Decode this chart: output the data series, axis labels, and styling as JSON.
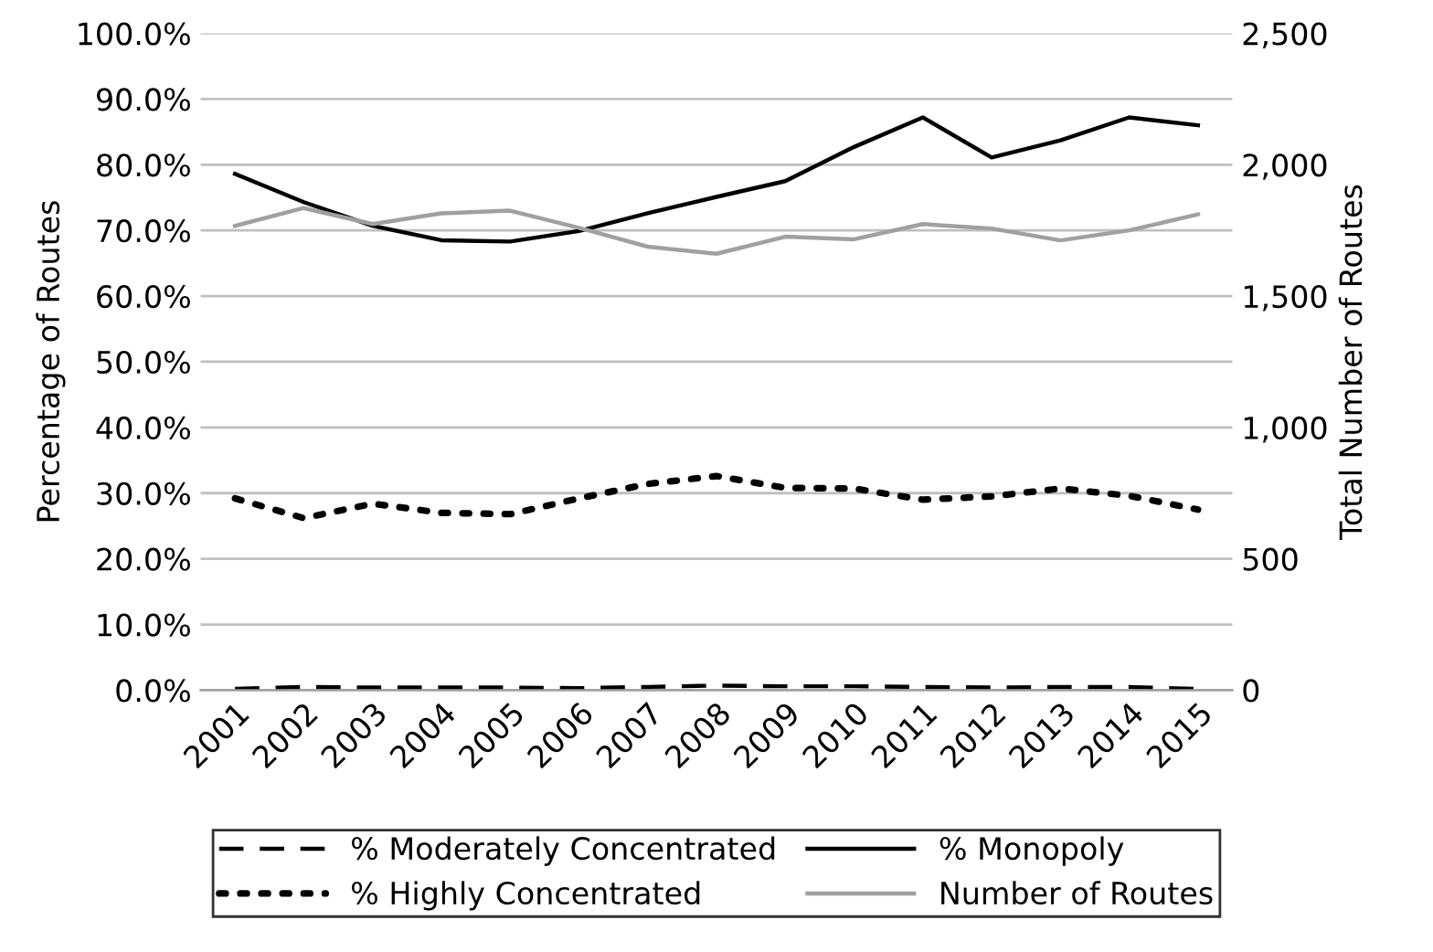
{
  "chart_data": {
    "type": "line",
    "ylabel": "Percentage of Routes",
    "y2label": "Total Number of Routes",
    "categories": [
      "2001",
      "2002",
      "2003",
      "2004",
      "2005",
      "2006",
      "2007",
      "2008",
      "2009",
      "2010",
      "2011",
      "2012",
      "2013",
      "2014",
      "2015"
    ],
    "series": [
      {
        "name": "% Moderately Concentrated",
        "color": "#000000",
        "line_style": "dashed",
        "values": [
          0.2,
          0.5,
          0.4,
          0.4,
          0.4,
          0.3,
          0.5,
          0.7,
          0.6,
          0.6,
          0.5,
          0.4,
          0.5,
          0.5,
          0.2
        ]
      },
      {
        "name": "% Highly Concentrated",
        "color": "#000000",
        "line_style": "dotted",
        "values": [
          29.2,
          26.2,
          28.4,
          27.0,
          26.8,
          29.2,
          31.4,
          32.6,
          30.8,
          30.7,
          29.0,
          29.5,
          30.7,
          29.6,
          27.5
        ]
      },
      {
        "name": "% Monopoly",
        "color": "#000000",
        "line_style": "solid",
        "values": [
          78.6,
          74.3,
          70.7,
          68.5,
          68.3,
          69.9,
          72.6,
          75.1,
          77.5,
          82.7,
          87.2,
          81.1,
          83.7,
          87.2,
          86.0
        ]
      },
      {
        "name": "Number of Routes",
        "color": "#a0a0a0",
        "line_style": "solid",
        "axis": "y2",
        "values": [
          1767,
          1835,
          1774,
          1815,
          1825,
          1760,
          1688,
          1661,
          1726,
          1716,
          1774,
          1757,
          1712,
          1750,
          1811
        ]
      }
    ],
    "ylim": [
      0,
      100
    ],
    "yticks": [
      {
        "value": 0,
        "label": "0.0%"
      },
      {
        "value": 10,
        "label": "10.0%"
      },
      {
        "value": 20,
        "label": "20.0%"
      },
      {
        "value": 30,
        "label": "30.0%"
      },
      {
        "value": 40,
        "label": "40.0%"
      },
      {
        "value": 50,
        "label": "50.0%"
      },
      {
        "value": 60,
        "label": "60.0%"
      },
      {
        "value": 70,
        "label": "70.0%"
      },
      {
        "value": 80,
        "label": "80.0%"
      },
      {
        "value": 90,
        "label": "90.0%"
      },
      {
        "value": 100,
        "label": "100.0%"
      }
    ],
    "y2lim": [
      0,
      2500
    ],
    "y2ticks": [
      0,
      500,
      {
        "value": 1000,
        "label": "1,000"
      },
      {
        "value": 1500,
        "label": "1,500"
      },
      {
        "value": 2000,
        "label": "2,000"
      },
      {
        "value": 2500,
        "label": "2,500"
      }
    ],
    "grid": "y",
    "legend": "bottom",
    "marker": "none"
  }
}
